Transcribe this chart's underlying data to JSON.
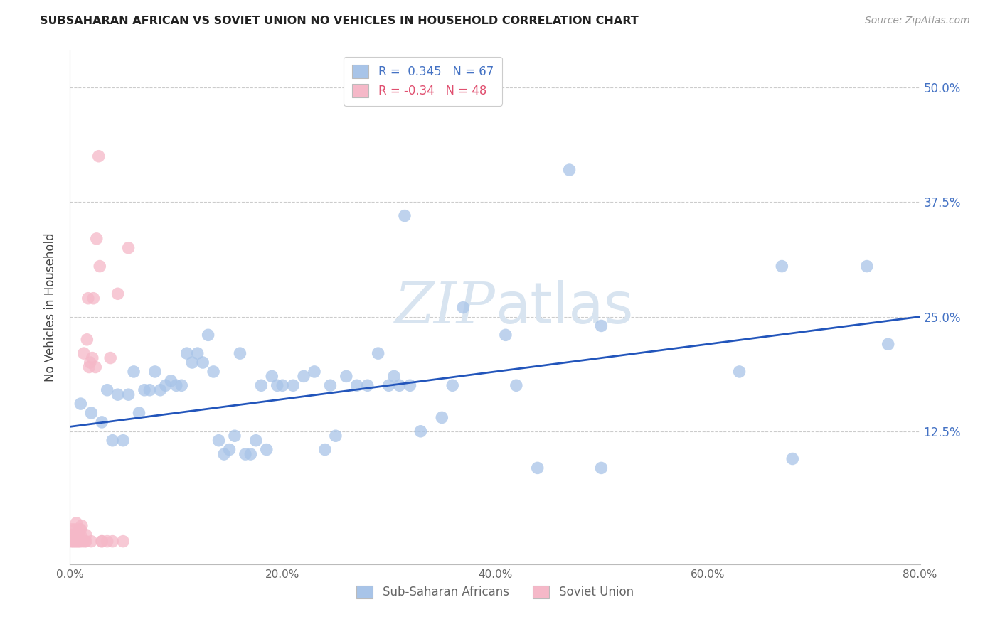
{
  "title": "SUBSAHARAN AFRICAN VS SOVIET UNION NO VEHICLES IN HOUSEHOLD CORRELATION CHART",
  "source": "Source: ZipAtlas.com",
  "ylabel": "No Vehicles in Household",
  "xlim": [
    0.0,
    0.8
  ],
  "ylim": [
    -0.02,
    0.54
  ],
  "legend1_label": "Sub-Saharan Africans",
  "legend2_label": "Soviet Union",
  "r1": 0.345,
  "n1": 67,
  "r2": -0.34,
  "n2": 48,
  "blue_color": "#A8C4E8",
  "pink_color": "#F5B8C8",
  "blue_dark": "#4472C4",
  "pink_dark": "#E05070",
  "line_color": "#2255BB",
  "watermark_color": "#D8E4F0",
  "yticks": [
    0.125,
    0.25,
    0.375,
    0.5
  ],
  "xticks": [
    0.0,
    0.2,
    0.4,
    0.6,
    0.8
  ],
  "blue_points_x": [
    0.01,
    0.02,
    0.03,
    0.035,
    0.04,
    0.045,
    0.05,
    0.055,
    0.06,
    0.065,
    0.07,
    0.075,
    0.08,
    0.085,
    0.09,
    0.095,
    0.1,
    0.105,
    0.11,
    0.115,
    0.12,
    0.125,
    0.13,
    0.135,
    0.14,
    0.145,
    0.15,
    0.155,
    0.16,
    0.165,
    0.17,
    0.175,
    0.18,
    0.185,
    0.19,
    0.195,
    0.2,
    0.21,
    0.22,
    0.23,
    0.24,
    0.245,
    0.25,
    0.26,
    0.27,
    0.28,
    0.29,
    0.3,
    0.305,
    0.31,
    0.315,
    0.32,
    0.33,
    0.35,
    0.36,
    0.37,
    0.41,
    0.42,
    0.44,
    0.47,
    0.5,
    0.63,
    0.67,
    0.68,
    0.75,
    0.77,
    0.5
  ],
  "blue_points_y": [
    0.155,
    0.145,
    0.135,
    0.17,
    0.115,
    0.165,
    0.115,
    0.165,
    0.19,
    0.145,
    0.17,
    0.17,
    0.19,
    0.17,
    0.175,
    0.18,
    0.175,
    0.175,
    0.21,
    0.2,
    0.21,
    0.2,
    0.23,
    0.19,
    0.115,
    0.1,
    0.105,
    0.12,
    0.21,
    0.1,
    0.1,
    0.115,
    0.175,
    0.105,
    0.185,
    0.175,
    0.175,
    0.175,
    0.185,
    0.19,
    0.105,
    0.175,
    0.12,
    0.185,
    0.175,
    0.175,
    0.21,
    0.175,
    0.185,
    0.175,
    0.36,
    0.175,
    0.125,
    0.14,
    0.175,
    0.26,
    0.23,
    0.175,
    0.085,
    0.41,
    0.24,
    0.19,
    0.305,
    0.095,
    0.305,
    0.22,
    0.085
  ],
  "pink_points_x": [
    0.001,
    0.001,
    0.002,
    0.002,
    0.002,
    0.003,
    0.003,
    0.004,
    0.004,
    0.005,
    0.005,
    0.005,
    0.006,
    0.006,
    0.007,
    0.007,
    0.008,
    0.008,
    0.009,
    0.009,
    0.01,
    0.01,
    0.01,
    0.011,
    0.012,
    0.013,
    0.014,
    0.015,
    0.015,
    0.016,
    0.017,
    0.018,
    0.019,
    0.02,
    0.021,
    0.022,
    0.024,
    0.025,
    0.027,
    0.028,
    0.03,
    0.03,
    0.035,
    0.038,
    0.04,
    0.045,
    0.05,
    0.055
  ],
  "pink_points_y": [
    0.005,
    0.012,
    0.005,
    0.012,
    0.018,
    0.005,
    0.012,
    0.005,
    0.012,
    0.005,
    0.012,
    0.018,
    0.005,
    0.025,
    0.005,
    0.012,
    0.005,
    0.012,
    0.005,
    0.018,
    0.005,
    0.012,
    0.018,
    0.022,
    0.005,
    0.21,
    0.005,
    0.005,
    0.012,
    0.225,
    0.27,
    0.195,
    0.2,
    0.005,
    0.205,
    0.27,
    0.195,
    0.335,
    0.425,
    0.305,
    0.005,
    0.005,
    0.005,
    0.205,
    0.005,
    0.275,
    0.005,
    0.325
  ]
}
